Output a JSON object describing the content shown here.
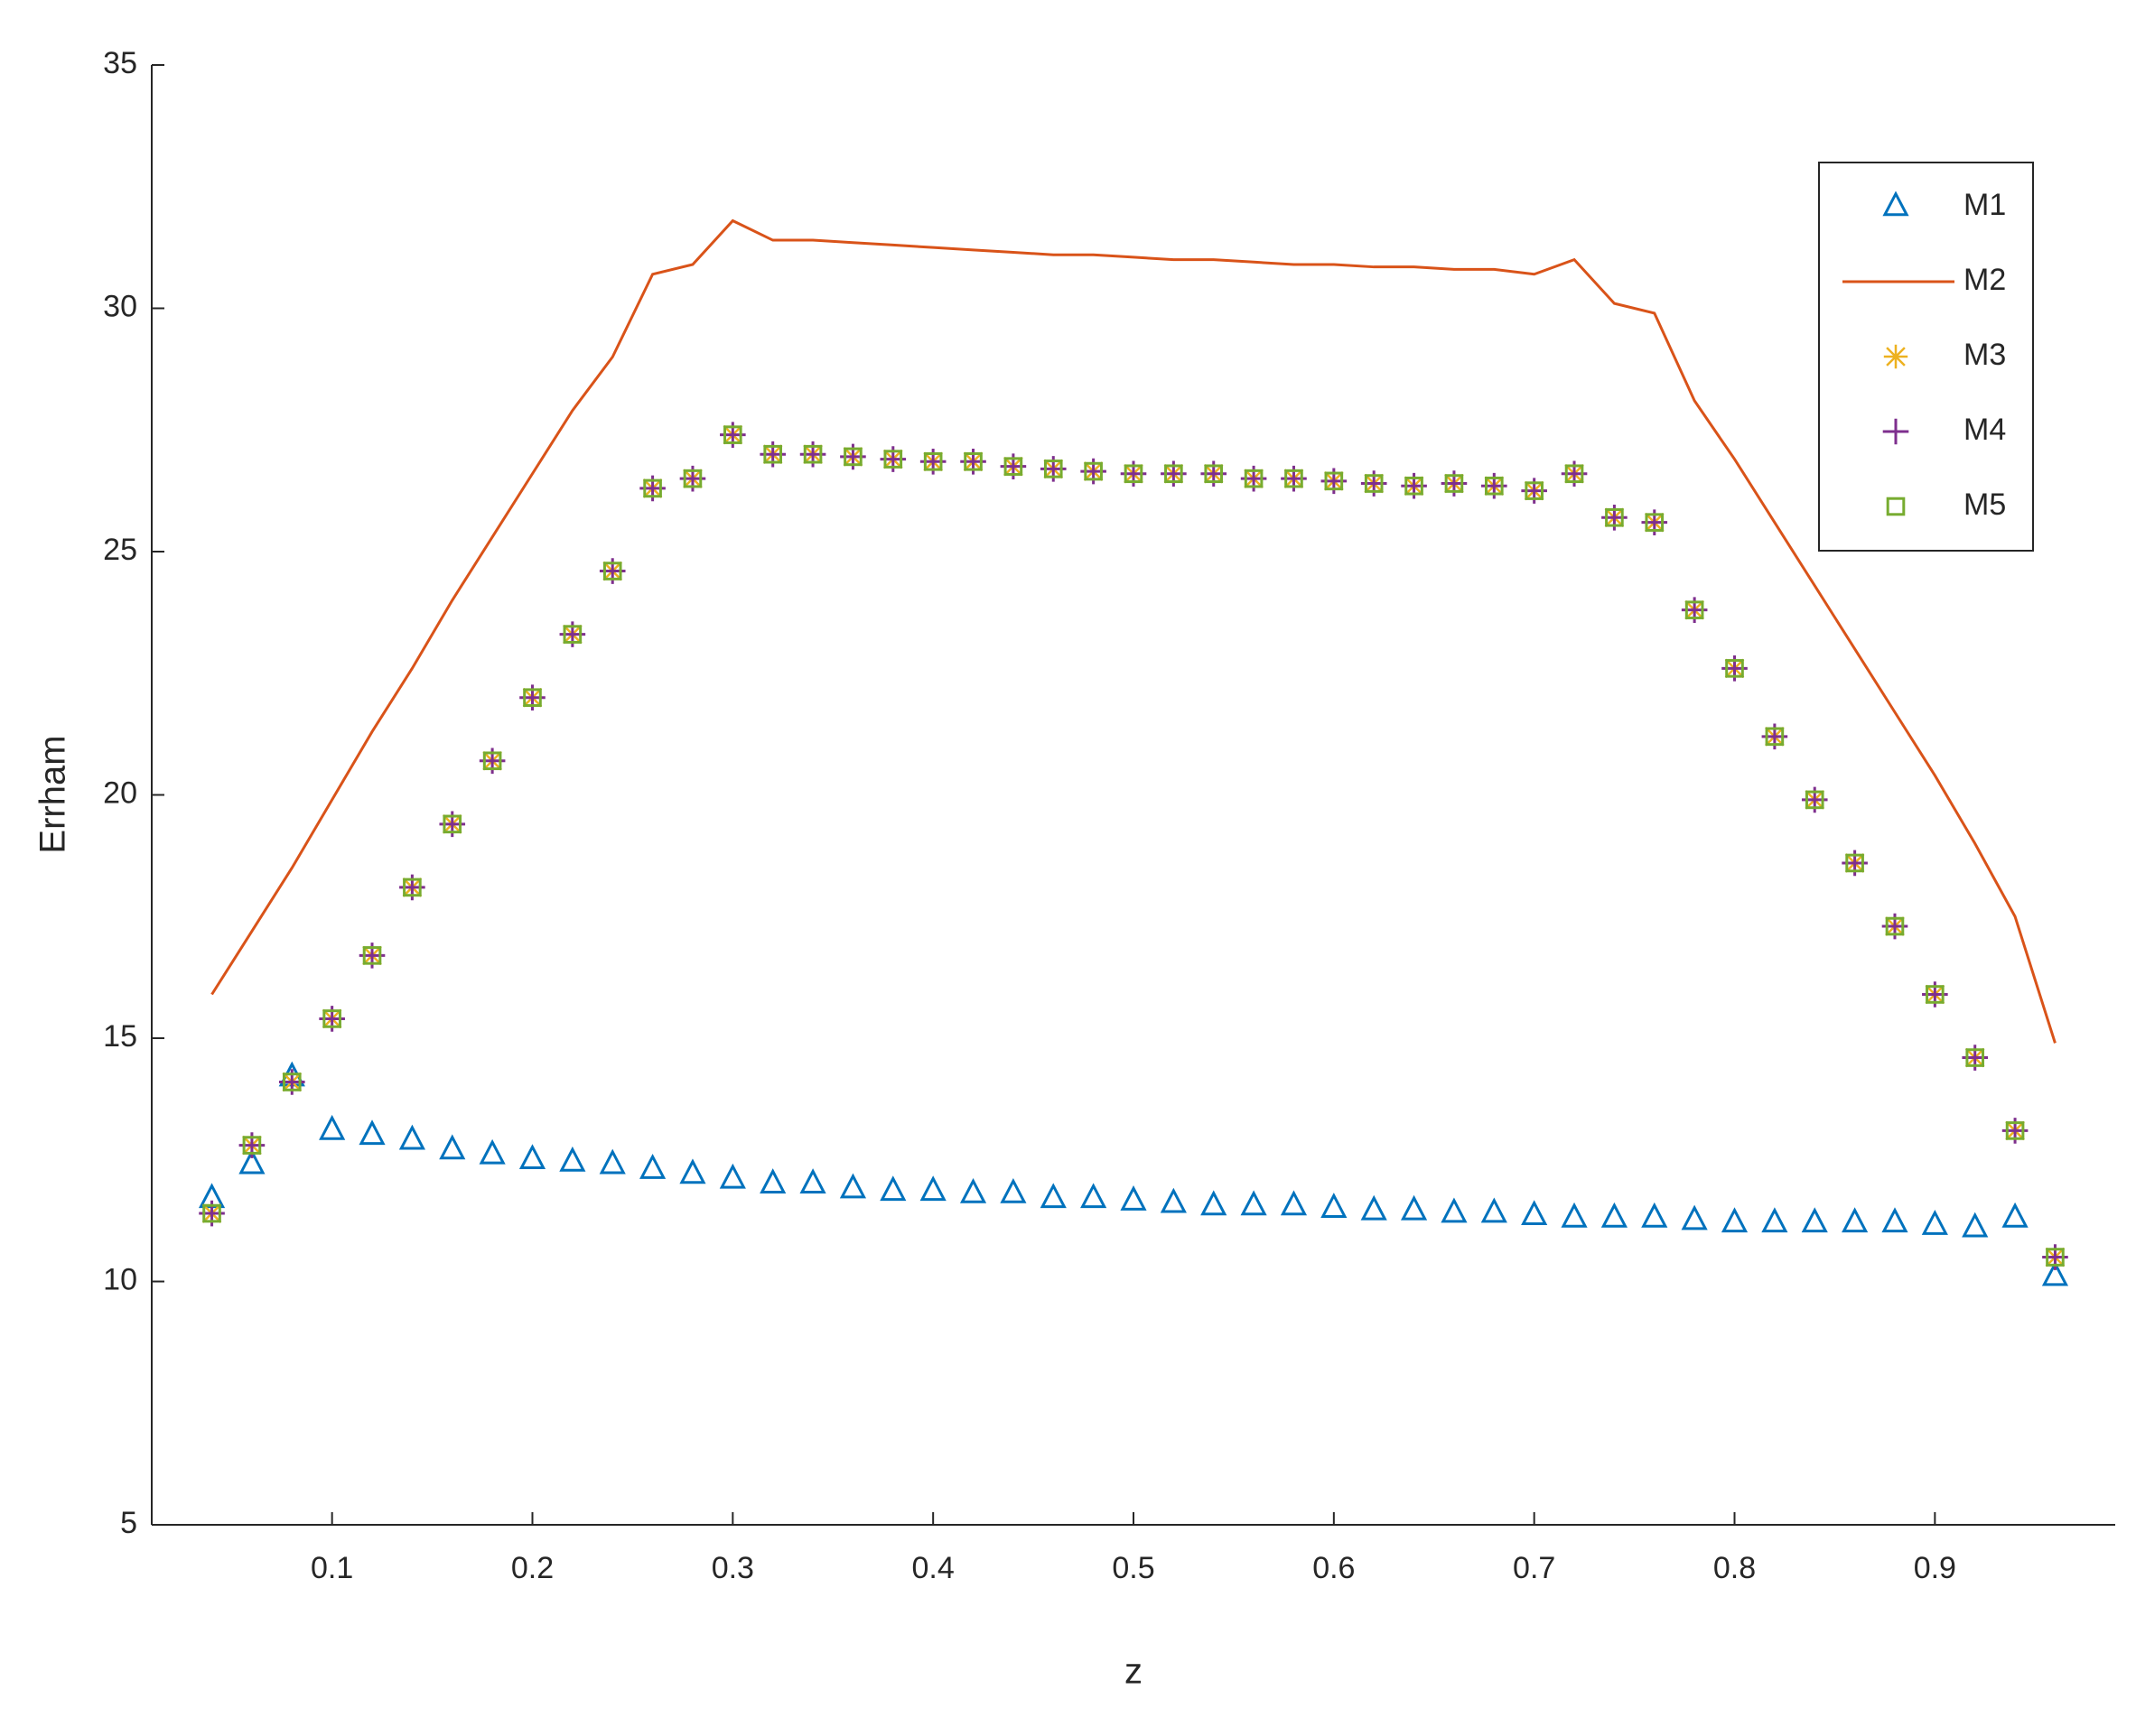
{
  "chart_data": {
    "type": "line",
    "xlabel": "z",
    "ylabel": "Errham",
    "x": [
      0.04,
      0.06,
      0.08,
      0.1,
      0.12,
      0.14,
      0.16,
      0.18,
      0.2,
      0.22,
      0.24,
      0.26,
      0.28,
      0.3,
      0.32,
      0.34,
      0.36,
      0.38,
      0.4,
      0.42,
      0.44,
      0.46,
      0.48,
      0.5,
      0.52,
      0.54,
      0.56,
      0.58,
      0.6,
      0.62,
      0.64,
      0.66,
      0.68,
      0.7,
      0.72,
      0.74,
      0.76,
      0.78,
      0.8,
      0.82,
      0.84,
      0.86,
      0.88,
      0.9,
      0.92,
      0.94,
      0.96
    ],
    "series": [
      {
        "name": "M1",
        "color": "#0072bd",
        "marker": "triangle",
        "line": false,
        "values": [
          11.7,
          12.4,
          14.2,
          13.1,
          13.0,
          12.9,
          12.7,
          12.6,
          12.5,
          12.45,
          12.4,
          12.3,
          12.2,
          12.1,
          12.0,
          12.0,
          11.9,
          11.85,
          11.85,
          11.8,
          11.8,
          11.7,
          11.7,
          11.65,
          11.6,
          11.55,
          11.55,
          11.55,
          11.5,
          11.45,
          11.45,
          11.4,
          11.4,
          11.35,
          11.3,
          11.3,
          11.3,
          11.25,
          11.2,
          11.2,
          11.2,
          11.2,
          11.2,
          11.15,
          11.1,
          11.3,
          10.1
        ]
      },
      {
        "name": "M2",
        "color": "#d95319",
        "marker": "none",
        "line": true,
        "values": [
          15.9,
          17.2,
          18.5,
          19.9,
          21.3,
          22.6,
          24.0,
          25.3,
          26.6,
          27.9,
          29.0,
          30.7,
          30.9,
          31.8,
          31.4,
          31.4,
          31.35,
          31.3,
          31.25,
          31.2,
          31.15,
          31.1,
          31.1,
          31.05,
          31.0,
          31.0,
          30.95,
          30.9,
          30.9,
          30.85,
          30.85,
          30.8,
          30.8,
          30.7,
          31.0,
          30.1,
          29.9,
          28.1,
          26.9,
          25.6,
          24.3,
          23.0,
          21.7,
          20.4,
          19.0,
          17.5,
          14.9
        ]
      },
      {
        "name": "M3",
        "color": "#edb120",
        "marker": "asterisk",
        "line": false,
        "values": [
          11.4,
          12.8,
          14.1,
          15.4,
          16.7,
          18.1,
          19.4,
          20.7,
          22.0,
          23.3,
          24.6,
          26.3,
          26.5,
          27.4,
          27.0,
          27.0,
          26.95,
          26.9,
          26.85,
          26.85,
          26.75,
          26.7,
          26.65,
          26.6,
          26.6,
          26.6,
          26.5,
          26.5,
          26.45,
          26.4,
          26.35,
          26.4,
          26.35,
          26.25,
          26.6,
          25.7,
          25.6,
          23.8,
          22.6,
          21.2,
          19.9,
          18.6,
          17.3,
          15.9,
          14.6,
          13.1,
          10.5
        ]
      },
      {
        "name": "M4",
        "color": "#7e2f8e",
        "marker": "plus",
        "line": false,
        "values": [
          11.4,
          12.8,
          14.1,
          15.4,
          16.7,
          18.1,
          19.4,
          20.7,
          22.0,
          23.3,
          24.6,
          26.3,
          26.5,
          27.4,
          27.0,
          27.0,
          26.95,
          26.9,
          26.85,
          26.85,
          26.75,
          26.7,
          26.65,
          26.6,
          26.6,
          26.6,
          26.5,
          26.5,
          26.45,
          26.4,
          26.35,
          26.4,
          26.35,
          26.25,
          26.6,
          25.7,
          25.6,
          23.8,
          22.6,
          21.2,
          19.9,
          18.6,
          17.3,
          15.9,
          14.6,
          13.1,
          10.5
        ]
      },
      {
        "name": "M5",
        "color": "#77ac30",
        "marker": "square",
        "line": false,
        "values": [
          11.4,
          12.8,
          14.1,
          15.4,
          16.7,
          18.1,
          19.4,
          20.7,
          22.0,
          23.3,
          24.6,
          26.3,
          26.5,
          27.4,
          27.0,
          27.0,
          26.95,
          26.9,
          26.85,
          26.85,
          26.75,
          26.7,
          26.65,
          26.6,
          26.6,
          26.6,
          26.5,
          26.5,
          26.45,
          26.4,
          26.35,
          26.4,
          26.35,
          26.25,
          26.6,
          25.7,
          25.6,
          23.8,
          22.6,
          21.2,
          19.9,
          18.6,
          17.3,
          15.9,
          14.6,
          13.1,
          10.5
        ]
      }
    ],
    "xlim": [
      0.01,
      0.99
    ],
    "ylim": [
      5,
      35
    ],
    "xticks": [
      0.1,
      0.2,
      0.3,
      0.4,
      0.5,
      0.6,
      0.7,
      0.8,
      0.9
    ],
    "yticks": [
      5,
      10,
      15,
      20,
      25,
      30,
      35
    ],
    "legend": "upper-right",
    "grid": false
  }
}
